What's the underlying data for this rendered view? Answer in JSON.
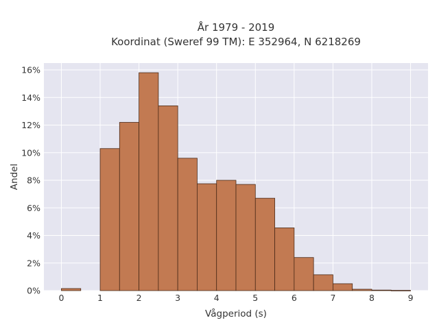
{
  "chart_data": {
    "type": "bar",
    "title": "År 1979 - 2019",
    "subtitle": "Koordinat (Sweref 99 TM): E 352964, N 6218269",
    "xlabel": "Vågperiod (s)",
    "ylabel": "Andel",
    "xlim": [
      -0.45,
      9.45
    ],
    "ylim": [
      0,
      16.5
    ],
    "x_ticks": [
      "0",
      "1",
      "2",
      "3",
      "4",
      "5",
      "6",
      "7",
      "8",
      "9"
    ],
    "y_ticks": [
      "0%",
      "2%",
      "4%",
      "6%",
      "8%",
      "10%",
      "12%",
      "14%",
      "16%"
    ],
    "bin_width": 0.5,
    "bins": [
      {
        "start": 0.0,
        "value": 0.15
      },
      {
        "start": 0.5,
        "value": 0.0
      },
      {
        "start": 1.0,
        "value": 10.3
      },
      {
        "start": 1.5,
        "value": 12.2
      },
      {
        "start": 2.0,
        "value": 15.8
      },
      {
        "start": 2.5,
        "value": 13.4
      },
      {
        "start": 3.0,
        "value": 9.6
      },
      {
        "start": 3.5,
        "value": 7.75
      },
      {
        "start": 4.0,
        "value": 8.0
      },
      {
        "start": 4.5,
        "value": 7.7
      },
      {
        "start": 5.0,
        "value": 6.7
      },
      {
        "start": 5.5,
        "value": 4.55
      },
      {
        "start": 6.0,
        "value": 2.4
      },
      {
        "start": 6.5,
        "value": 1.15
      },
      {
        "start": 7.0,
        "value": 0.5
      },
      {
        "start": 7.5,
        "value": 0.1
      },
      {
        "start": 8.0,
        "value": 0.04
      },
      {
        "start": 8.5,
        "value": 0.02
      }
    ],
    "grid": true,
    "colors": {
      "bar_fill": "#c27a52",
      "bar_stroke": "#4a2a18",
      "plot_bg": "#e5e5f0",
      "grid": "#ffffff",
      "text": "#333333"
    }
  }
}
